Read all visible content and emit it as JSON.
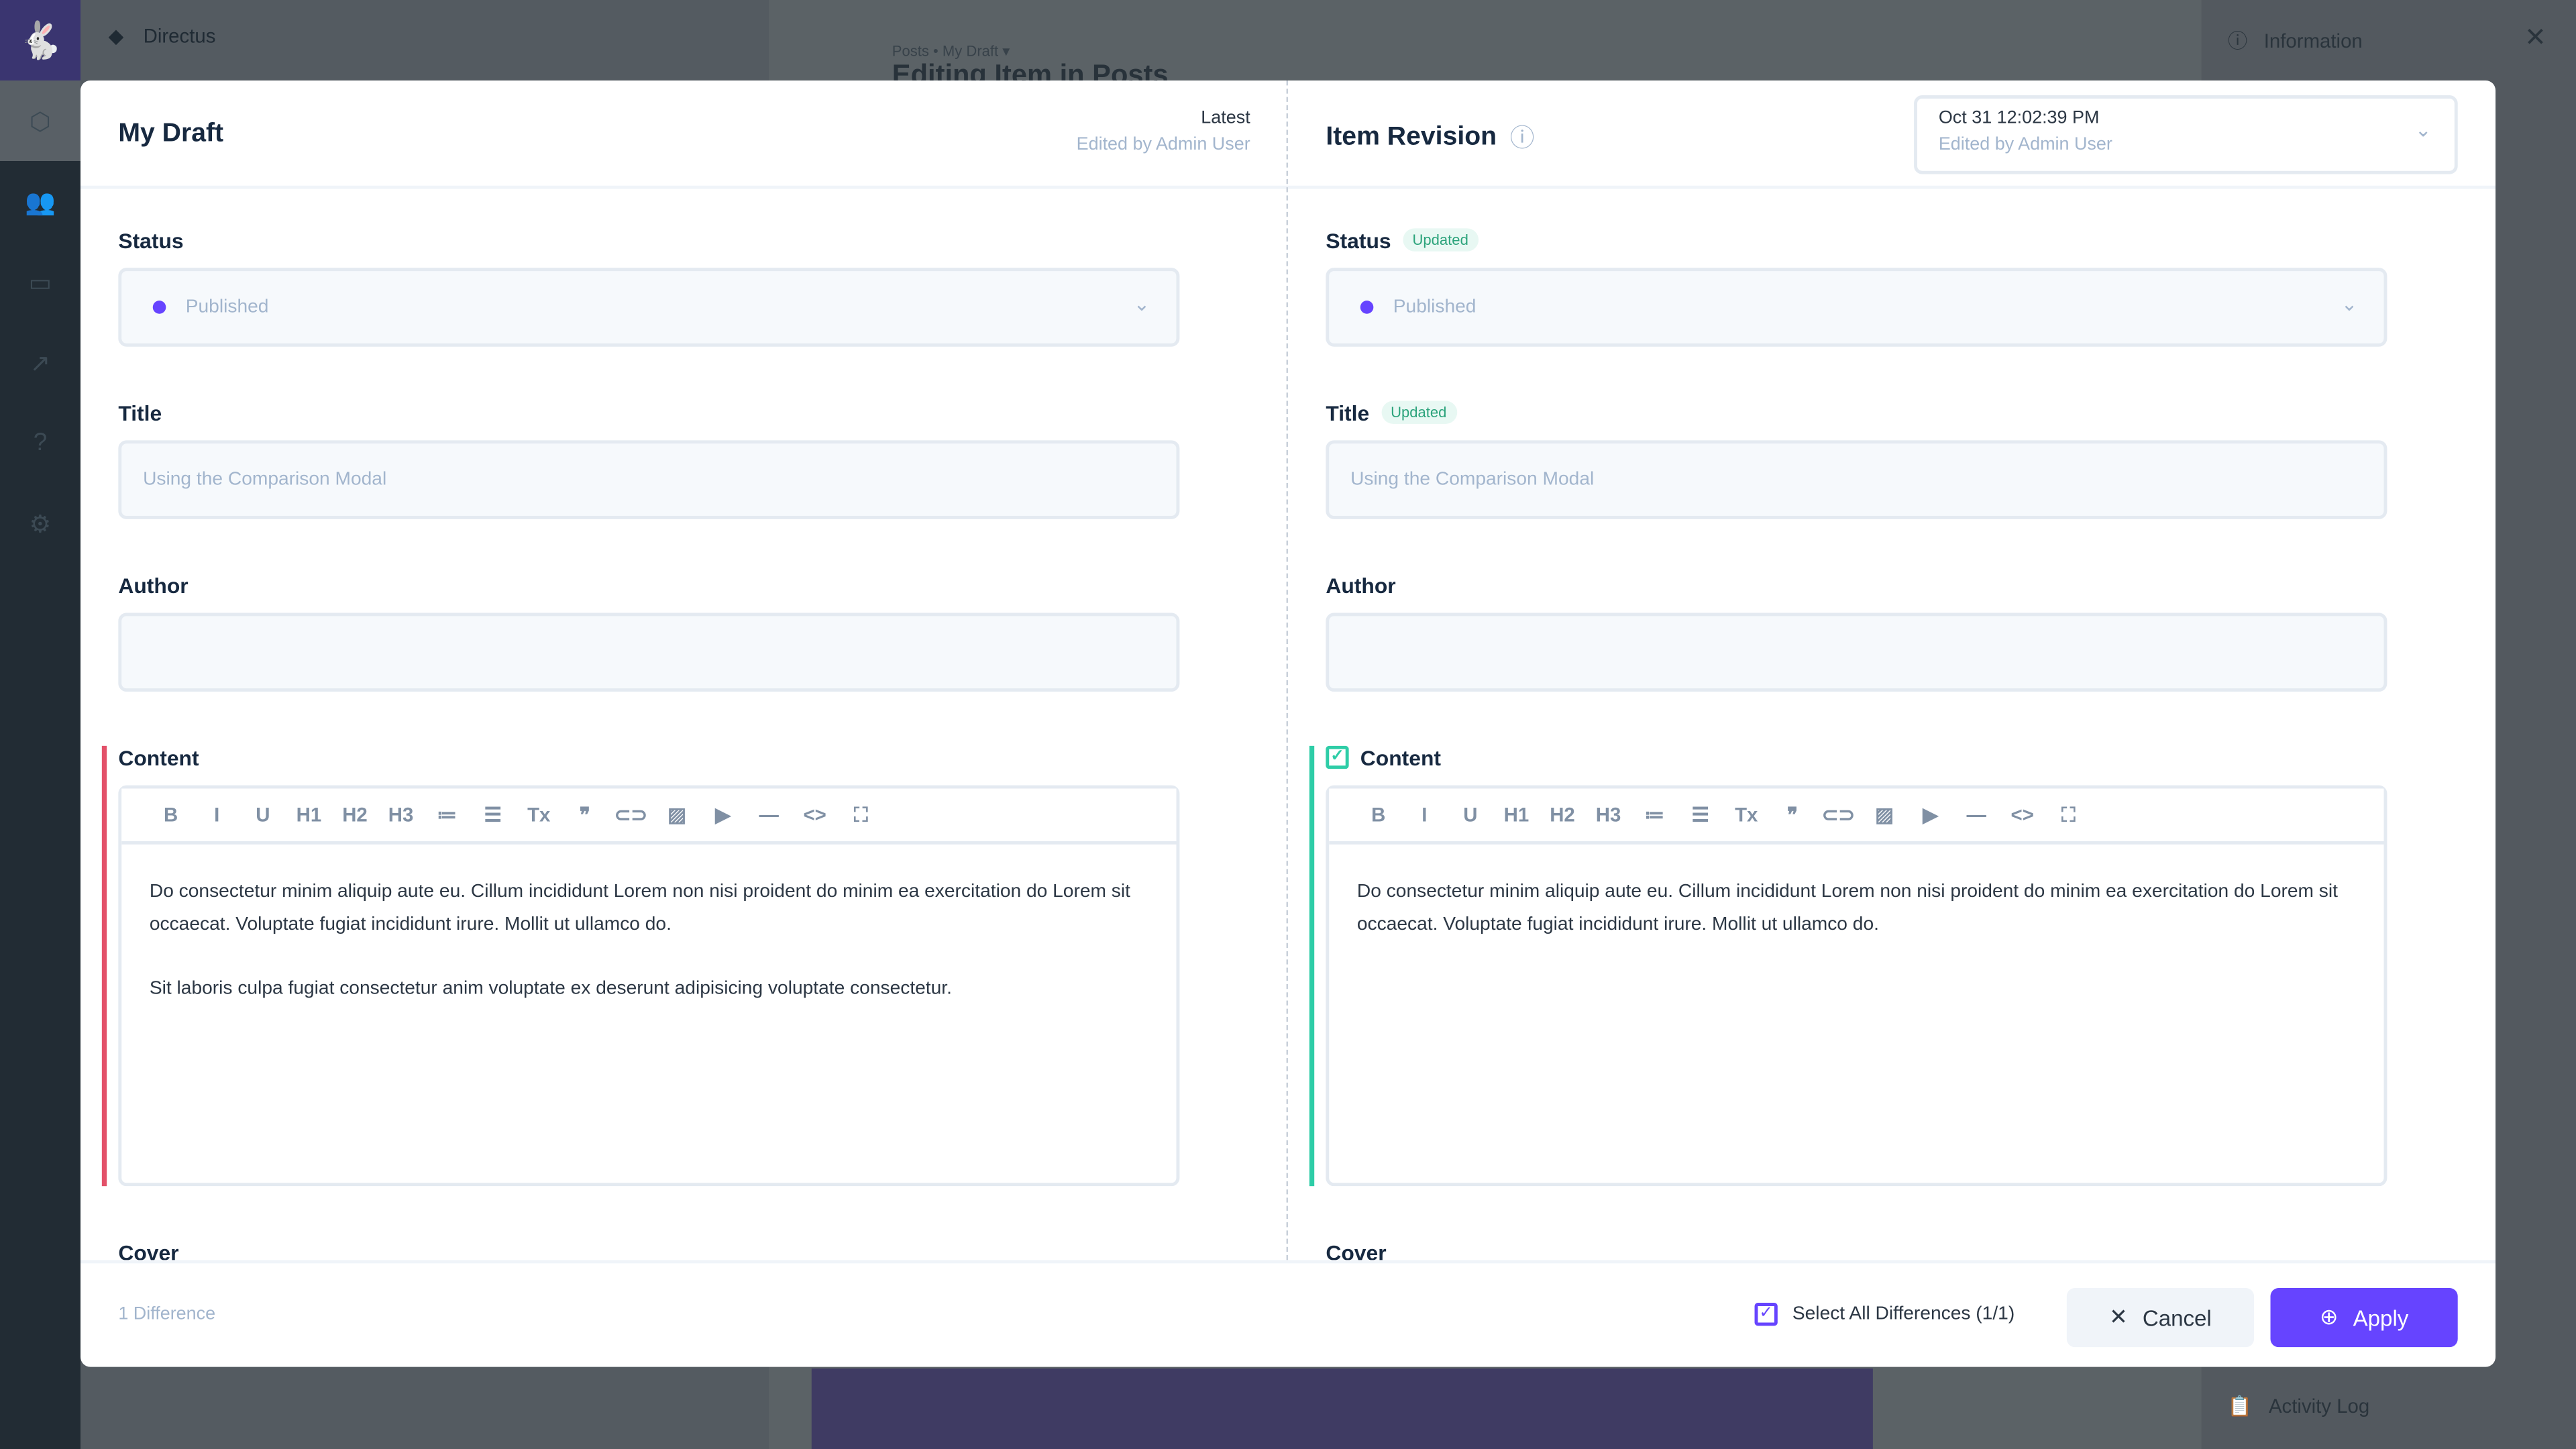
{
  "background": {
    "project": "Directus",
    "breadcrumb": "Posts • My Draft ▾",
    "page_title": "Editing Item in Posts",
    "sidebar_info": "Information",
    "activity_log": "Activity Log"
  },
  "left": {
    "title": "My Draft",
    "meta_title": "Latest",
    "meta_sub": "Edited by Admin User"
  },
  "right": {
    "title": "Item Revision",
    "revision_date": "Oct 31 12:02:39 PM",
    "revision_sub": "Edited by Admin User"
  },
  "fields": {
    "status_label": "Status",
    "status_value": "Published",
    "title_label": "Title",
    "title_value": "Using the Comparison Modal",
    "author_label": "Author",
    "author_value": "",
    "content_label": "Content",
    "cover_label": "Cover",
    "updated_badge": "Updated",
    "toolbar": [
      "B",
      "I",
      "U",
      "H1",
      "H2",
      "H3",
      "≔",
      "☰",
      "Tx",
      "❞",
      "⊂⊃",
      "▨",
      "▶",
      "—",
      "<>",
      "⛶"
    ],
    "toolbar_icons": [
      "bold",
      "italic",
      "underline",
      "h1",
      "h2",
      "h3",
      "ordered-list",
      "bullet-list",
      "clear-format",
      "blockquote",
      "link",
      "image",
      "media",
      "horizontal-rule",
      "code",
      "fullscreen"
    ]
  },
  "left_content": [
    "Do consectetur minim aliquip aute eu. Cillum incididunt Lorem non nisi proident do minim ea exercitation do Lorem sit occaecat. Voluptate fugiat incididunt irure. Mollit ut ullamco do.",
    "Sit laboris culpa fugiat consectetur anim voluptate ex deserunt adipisicing voluptate consectetur."
  ],
  "right_content": [
    "Do consectetur minim aliquip aute eu. Cillum incididunt Lorem non nisi proident do minim ea exercitation do Lorem sit occaecat. Voluptate fugiat incididunt irure. Mollit ut ullamco do."
  ],
  "footer": {
    "differences": "1 Difference",
    "select_all": "Select All Differences (1/1)",
    "select_all_checked": true,
    "cancel": "Cancel",
    "apply": "Apply"
  },
  "colors": {
    "accent": "#6644ff",
    "removed": "#e35169",
    "added": "#2ecda7",
    "status_dot": "#6644ff"
  }
}
